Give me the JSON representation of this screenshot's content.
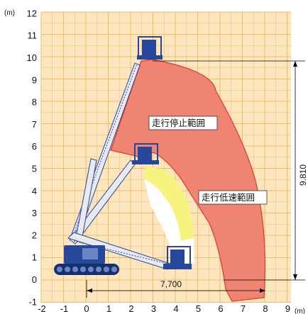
{
  "axes": {
    "x_unit": "(m)",
    "y_unit": "(m)",
    "x_ticks": [
      "-2",
      "-1",
      "0",
      "1",
      "2",
      "3",
      "4",
      "5",
      "6",
      "7",
      "8",
      "9"
    ],
    "y_ticks": [
      "-1",
      "0",
      "1",
      "2",
      "3",
      "4",
      "5",
      "6",
      "7",
      "8",
      "9",
      "10",
      "11",
      "12"
    ]
  },
  "zones": {
    "stop_label": "走行停止範囲",
    "slow_label": "走行低速範囲"
  },
  "dimensions": {
    "horizontal_reach": "7,700",
    "vertical_height": "9.810"
  },
  "colors": {
    "grid_fill": "#fde6bd",
    "grid_line": "#f1b96a",
    "stop_zone": "#ef8473",
    "stop_zone_border": "#d93a2b",
    "slow_zone": "#f7f37e",
    "machine_blue": "#27479a",
    "boom": "#e8eaef"
  }
}
